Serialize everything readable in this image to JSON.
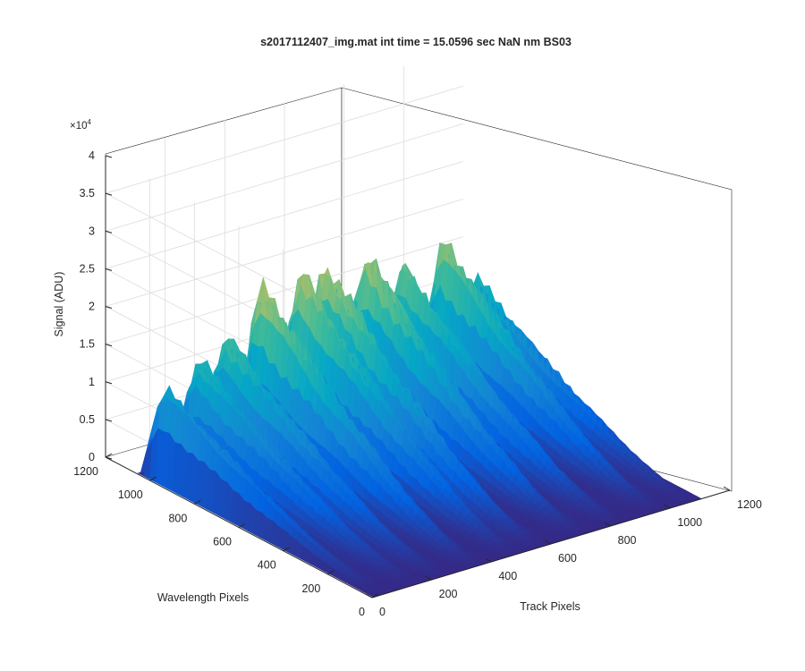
{
  "chart_data": {
    "type": "surface",
    "title": "s2017112407_img.mat int time = 15.0596 sec  NaN nm BS03",
    "xlabel": "Track Pixels",
    "ylabel": "Wavelength Pixels",
    "zlabel": "Signal (ADU)",
    "z_exponent_label": "×10",
    "z_exponent_power": "4",
    "xlim": [
      0,
      1200
    ],
    "ylim": [
      0,
      1200
    ],
    "zlim": [
      0,
      40000
    ],
    "x_ticks": [
      0,
      200,
      400,
      600,
      800,
      1000,
      1200
    ],
    "y_ticks": [
      0,
      200,
      400,
      600,
      800,
      1000,
      1200
    ],
    "z_ticks": [
      0,
      0.5,
      1,
      1.5,
      2,
      2.5,
      3,
      3.5,
      4
    ],
    "grid": true,
    "colormap": "parula",
    "colors": [
      "#352a87",
      "#0363e1",
      "#1485d4",
      "#06a7c6",
      "#38b99e",
      "#92bf73",
      "#d9ba56",
      "#fcce2e",
      "#f9fb0e"
    ],
    "peaks_by_track_pixel": [
      {
        "x": 30,
        "peak_signal": 15000
      },
      {
        "x": 140,
        "peak_signal": 19000
      },
      {
        "x": 230,
        "peak_signal": 22000
      },
      {
        "x": 350,
        "peak_signal": 30000
      },
      {
        "x": 480,
        "peak_signal": 30000
      },
      {
        "x": 560,
        "peak_signal": 30500
      },
      {
        "x": 700,
        "peak_signal": 30000
      },
      {
        "x": 820,
        "peak_signal": 26000
      },
      {
        "x": 960,
        "peak_signal": 28000
      },
      {
        "x": 1070,
        "peak_signal": 19000
      }
    ]
  }
}
